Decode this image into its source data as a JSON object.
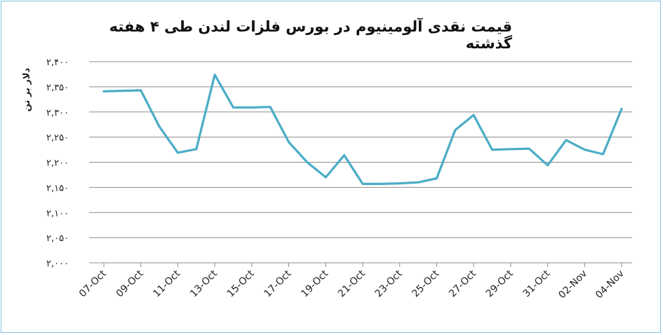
{
  "chart_data": {
    "type": "line",
    "title": "قیمت نقدی آلومینیوم در بورس فلزات لندن طی ۴ هفته گذشته",
    "ylabel": "دلار بر تن",
    "xlabel": "",
    "ylim": [
      2000,
      2400
    ],
    "yticks": [
      2000,
      2050,
      2100,
      2150,
      2200,
      2250,
      2300,
      2350,
      2400
    ],
    "ytick_labels": [
      "۲,۰۰۰",
      "۲,۰۵۰",
      "۲,۱۰۰",
      "۲,۱۵۰",
      "۲,۲۰۰",
      "۲,۲۵۰",
      "۲,۳۰۰",
      "۲,۳۵۰",
      "۲,۴۰۰"
    ],
    "x_tick_labels": [
      "07-Oct",
      "09-Oct",
      "11-Oct",
      "13-Oct",
      "15-Oct",
      "17-Oct",
      "19-Oct",
      "21-Oct",
      "23-Oct",
      "25-Oct",
      "27-Oct",
      "29-Oct",
      "31-Oct",
      "02-Nov",
      "04-Nov"
    ],
    "grid": true,
    "line_color": "#4bacc6",
    "series": [
      {
        "values": [
          2341,
          2342,
          2343,
          2271,
          2219,
          2226,
          2374,
          2309,
          2309,
          2310,
          2240,
          2200,
          2170,
          2214,
          2157,
          2157,
          2158,
          2160,
          2168,
          2264,
          2294,
          2225,
          2226,
          2227,
          2194,
          2244,
          2225,
          2216,
          2306
        ]
      }
    ]
  }
}
